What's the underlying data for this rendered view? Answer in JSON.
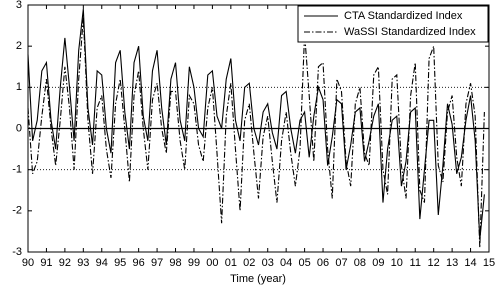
{
  "chart_data": {
    "type": "line",
    "xlabel": "Time (year)",
    "x": [
      1990,
      1990.25,
      1990.5,
      1990.75,
      1991,
      1991.25,
      1991.5,
      1991.75,
      1992,
      1992.25,
      1992.5,
      1992.75,
      1993,
      1993.25,
      1993.5,
      1993.75,
      1994,
      1994.25,
      1994.5,
      1994.75,
      1995,
      1995.25,
      1995.5,
      1995.75,
      1996,
      1996.25,
      1996.5,
      1996.75,
      1997,
      1997.25,
      1997.5,
      1997.75,
      1998,
      1998.25,
      1998.5,
      1998.75,
      1999,
      1999.25,
      1999.5,
      1999.75,
      2000,
      2000.25,
      2000.5,
      2000.75,
      2001,
      2001.25,
      2001.5,
      2001.75,
      2002,
      2002.25,
      2002.5,
      2002.75,
      2003,
      2003.25,
      2003.5,
      2003.75,
      2004,
      2004.25,
      2004.5,
      2004.75,
      2005,
      2005.25,
      2005.5,
      2005.75,
      2006,
      2006.25,
      2006.5,
      2006.75,
      2007,
      2007.25,
      2007.5,
      2007.75,
      2008,
      2008.25,
      2008.5,
      2008.75,
      2009,
      2009.25,
      2009.5,
      2009.75,
      2010,
      2010.25,
      2010.5,
      2010.75,
      2011,
      2011.25,
      2011.5,
      2011.75,
      2012,
      2012.25,
      2012.5,
      2012.75,
      2013,
      2013.25,
      2013.5,
      2013.75,
      2014,
      2014.25,
      2014.5,
      2014.75
    ],
    "series": [
      {
        "name": "CTA Standardized Index",
        "color": "#000000",
        "style": "solid",
        "values": [
          1.8,
          -0.3,
          0.2,
          1.4,
          1.6,
          0.2,
          -0.5,
          1.0,
          2.2,
          1.0,
          -0.3,
          1.9,
          2.9,
          0.5,
          -0.4,
          1.4,
          1.3,
          0.0,
          -0.6,
          1.6,
          1.9,
          0.4,
          -0.5,
          1.6,
          2.0,
          0.3,
          -0.3,
          1.4,
          1.9,
          0.5,
          -0.4,
          1.2,
          1.6,
          0.2,
          -0.3,
          1.5,
          1.0,
          0.0,
          -0.2,
          1.3,
          1.4,
          0.3,
          0.0,
          1.2,
          1.7,
          0.2,
          -0.3,
          1.0,
          1.1,
          0.0,
          -0.4,
          0.4,
          0.6,
          -0.1,
          -0.5,
          0.8,
          0.9,
          0.0,
          -0.6,
          0.2,
          0.4,
          -0.7,
          0.3,
          1.0,
          0.7,
          -0.9,
          -0.2,
          0.7,
          0.6,
          -1.0,
          -0.4,
          0.4,
          0.5,
          -0.8,
          -0.3,
          0.3,
          0.6,
          -1.8,
          -0.5,
          0.2,
          0.3,
          -1.4,
          -0.8,
          0.4,
          0.5,
          -2.2,
          -1.0,
          0.2,
          0.2,
          -2.1,
          -0.9,
          0.6,
          0.1,
          -1.1,
          -0.7,
          0.2,
          0.8,
          -0.3,
          -2.7,
          -1.6
        ]
      },
      {
        "name": "WaSSI Standardized Index",
        "color": "#000000",
        "style": "dashdot",
        "values": [
          0.5,
          -1.1,
          -0.8,
          0.3,
          1.2,
          0.0,
          -0.9,
          0.2,
          1.5,
          0.5,
          -1.0,
          1.2,
          2.7,
          0.2,
          -1.1,
          0.5,
          0.8,
          -0.5,
          -1.2,
          0.6,
          1.2,
          0.0,
          -1.3,
          0.8,
          1.4,
          0.0,
          -1.0,
          0.7,
          1.1,
          0.0,
          -0.6,
          0.9,
          0.9,
          -0.3,
          -1.0,
          0.8,
          0.6,
          -0.4,
          -0.8,
          0.5,
          1.0,
          -0.6,
          -2.3,
          0.3,
          1.1,
          -0.5,
          -2.0,
          0.2,
          0.6,
          -0.6,
          -1.7,
          -0.2,
          0.3,
          -0.8,
          -1.8,
          -0.3,
          0.4,
          -0.6,
          -1.4,
          -0.5,
          2.3,
          0.8,
          -0.8,
          1.5,
          1.6,
          -0.5,
          -1.7,
          1.2,
          0.9,
          -0.8,
          -1.4,
          0.6,
          1.0,
          -0.6,
          -0.9,
          1.3,
          1.5,
          -1.0,
          -1.6,
          1.2,
          1.3,
          -0.9,
          -1.7,
          0.8,
          1.6,
          -1.5,
          -1.8,
          1.7,
          2.0,
          -0.9,
          -1.3,
          0.4,
          0.8,
          -0.7,
          -1.4,
          0.6,
          1.1,
          0.3,
          -2.9,
          0.4
        ]
      }
    ],
    "xlim": [
      1990,
      2015
    ],
    "xticks": [
      {
        "value": 1990,
        "label": "90"
      },
      {
        "value": 1991,
        "label": "91"
      },
      {
        "value": 1992,
        "label": "92"
      },
      {
        "value": 1993,
        "label": "93"
      },
      {
        "value": 1994,
        "label": "94"
      },
      {
        "value": 1995,
        "label": "95"
      },
      {
        "value": 1996,
        "label": "96"
      },
      {
        "value": 1997,
        "label": "97"
      },
      {
        "value": 1998,
        "label": "98"
      },
      {
        "value": 1999,
        "label": "99"
      },
      {
        "value": 2000,
        "label": "00"
      },
      {
        "value": 2001,
        "label": "01"
      },
      {
        "value": 2002,
        "label": "02"
      },
      {
        "value": 2003,
        "label": "03"
      },
      {
        "value": 2004,
        "label": "04"
      },
      {
        "value": 2005,
        "label": "05"
      },
      {
        "value": 2006,
        "label": "06"
      },
      {
        "value": 2007,
        "label": "07"
      },
      {
        "value": 2008,
        "label": "08"
      },
      {
        "value": 2009,
        "label": "09"
      },
      {
        "value": 2010,
        "label": "10"
      },
      {
        "value": 2011,
        "label": "11"
      },
      {
        "value": 2012,
        "label": "12"
      },
      {
        "value": 2013,
        "label": "13"
      },
      {
        "value": 2014,
        "label": "14"
      },
      {
        "value": 2015,
        "label": "15"
      }
    ],
    "ylim": [
      -3,
      3
    ],
    "yticks": [
      -3,
      -2,
      -1,
      0,
      1,
      2,
      3
    ],
    "reference_lines": [
      {
        "value": 1,
        "style": "dotted"
      },
      {
        "value": -1,
        "style": "dotted"
      },
      {
        "value": 0,
        "style": "solid"
      }
    ],
    "legend": "upper right"
  }
}
